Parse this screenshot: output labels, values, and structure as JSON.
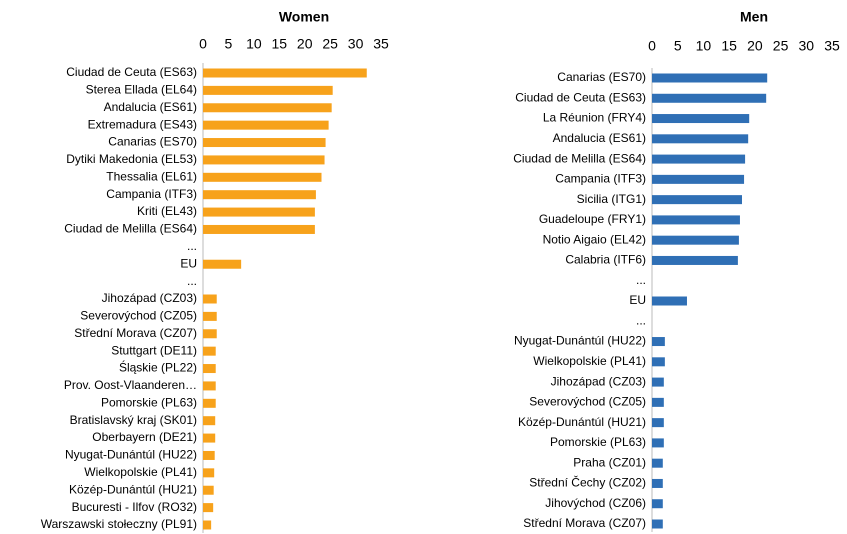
{
  "chart_data": [
    {
      "type": "bar",
      "orientation": "horizontal",
      "title": "Women",
      "color": "#f7a21b",
      "categories": [
        "Ciudad de Ceuta (ES63)",
        "Sterea Ellada (EL64)",
        "Andalucia (ES61)",
        "Extremadura (ES43)",
        "Canarias (ES70)",
        "Dytiki Makedonia (EL53)",
        "Thessalia (EL61)",
        "Campania (ITF3)",
        "Kriti (EL43)",
        "Ciudad de Melilla (ES64)",
        "...",
        "EU",
        "...",
        "Jihozápad (CZ03)",
        "Severovýchod (CZ05)",
        "Střední Morava (CZ07)",
        "Stuttgart (DE11)",
        "Śląskie (PL22)",
        "Prov. Oost-Vlaanderen…",
        "Pomorskie (PL63)",
        "Bratislavský kraj (SK01)",
        "Oberbayern (DE21)",
        "Nyugat-Dunántúl (HU22)",
        "Wielkopolskie (PL41)",
        "Közép-Dunántúl (HU21)",
        "Bucuresti - Ilfov (RO32)",
        "Warszawski stołeczny (PL91)"
      ],
      "values": [
        32.2,
        25.5,
        25.3,
        24.7,
        24.1,
        23.9,
        23.3,
        22.2,
        22.0,
        22.0,
        null,
        7.5,
        null,
        2.7,
        2.7,
        2.7,
        2.5,
        2.5,
        2.5,
        2.5,
        2.4,
        2.4,
        2.3,
        2.2,
        2.1,
        2.0,
        1.6
      ],
      "xlim": [
        0,
        35
      ],
      "xticks": [
        0,
        5,
        10,
        15,
        20,
        25,
        30,
        35
      ]
    },
    {
      "type": "bar",
      "orientation": "horizontal",
      "title": "Men",
      "color": "#2f6fb5",
      "categories": [
        "Canarias (ES70)",
        "Ciudad de Ceuta (ES63)",
        "La Réunion (FRY4)",
        "Andalucia (ES61)",
        "Ciudad de Melilla (ES64)",
        "Campania (ITF3)",
        "Sicilia (ITG1)",
        "Guadeloupe (FRY1)",
        "Notio Aigaio (EL42)",
        "Calabria (ITF6)",
        "...",
        "EU",
        "...",
        "Nyugat-Dunántúl (HU22)",
        "Wielkopolskie (PL41)",
        "Jihozápad (CZ03)",
        "Severovýchod (CZ05)",
        "Közép-Dunántúl (HU21)",
        "Pomorskie (PL63)",
        "Praha (CZ01)",
        "Střední Čechy (CZ02)",
        "Jihovýchod (CZ06)",
        "Střední Morava (CZ07)"
      ],
      "values": [
        22.4,
        22.2,
        18.9,
        18.7,
        18.1,
        17.9,
        17.5,
        17.1,
        16.9,
        16.7,
        null,
        6.8,
        null,
        2.5,
        2.5,
        2.3,
        2.3,
        2.3,
        2.3,
        2.1,
        2.1,
        2.1,
        2.1
      ],
      "xlim": [
        0,
        35
      ],
      "xticks": [
        0,
        5,
        10,
        15,
        20,
        25,
        30,
        35
      ]
    }
  ]
}
